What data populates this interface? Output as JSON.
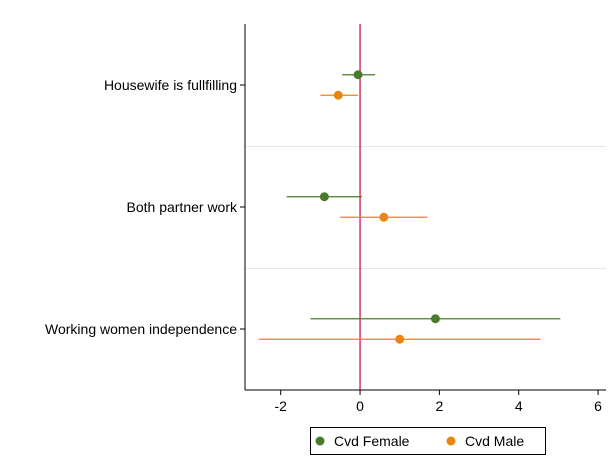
{
  "chart_data": {
    "type": "scatter",
    "subtype": "coefficient-plot",
    "title": "",
    "xlabel": "",
    "ylabel": "",
    "xlim": [
      -2.9,
      6.2
    ],
    "xticks": [
      -2,
      0,
      2,
      4,
      6
    ],
    "reference_line_x": 0,
    "categories": [
      "Housewife is fullfilling",
      "Both partner work",
      "Working women independence"
    ],
    "series": [
      {
        "name": "Cvd Female",
        "color": "#4a7a2a",
        "points": [
          {
            "category": "Housewife is fullfilling",
            "estimate": -0.05,
            "ci": [
              -0.45,
              0.38
            ]
          },
          {
            "category": "Both partner work",
            "estimate": -0.9,
            "ci": [
              -1.85,
              0.05
            ]
          },
          {
            "category": "Working women independence",
            "estimate": 1.9,
            "ci": [
              -1.25,
              5.05
            ]
          }
        ]
      },
      {
        "name": "Cvd Male",
        "color": "#e8870e",
        "points": [
          {
            "category": "Housewife is fullfilling",
            "estimate": -0.55,
            "ci": [
              -1.0,
              -0.05
            ]
          },
          {
            "category": "Both partner work",
            "estimate": 0.6,
            "ci": [
              -0.5,
              1.7
            ]
          },
          {
            "category": "Working women independence",
            "estimate": 1.0,
            "ci": [
              -2.55,
              4.55
            ]
          }
        ]
      }
    ],
    "grid": "horizontal separators between categories",
    "legend_position": "bottom"
  }
}
